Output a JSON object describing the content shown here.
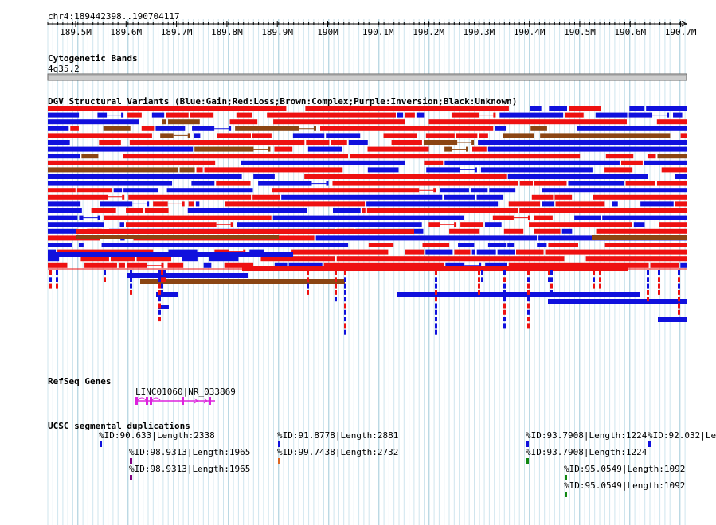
{
  "browser": {
    "coordinates": "chr4:189442398..190704117",
    "ruler_ticks": [
      "189.5M",
      "189.6M",
      "189.7M",
      "189.8M",
      "189.9M",
      "190M",
      "190.1M",
      "190.2M",
      "190.3M",
      "190.4M",
      "190.5M",
      "190.6M",
      "190.7M"
    ]
  },
  "tracks": {
    "cytoband": {
      "title": "Cytogenetic Bands",
      "band": "4q35.2"
    },
    "dgv": {
      "title": "DGV Structural Variants (Blue:Gain;Red:Loss;Brown:Complex;Purple:Inversion;Black:Unknown)",
      "colors": {
        "gain": "#1010dd",
        "loss": "#ee1111",
        "complex": "#8b4513",
        "inversion": "#800080",
        "unknown": "#000000"
      }
    },
    "refseq": {
      "title": "RefSeq Genes",
      "gene_label": "LINC01060|NR_033869",
      "gene_color": "#dd22dd"
    },
    "segdup": {
      "title": "UCSC segmental duplications",
      "features": [
        {
          "label": "%ID:90.633|Length:2338",
          "color": "#1010dd"
        },
        {
          "label": "%ID:98.9313|Length:1965",
          "color": "#800080"
        },
        {
          "label": "%ID:98.9313|Length:1965",
          "color": "#800080"
        },
        {
          "label": "%ID:91.8778|Length:2881",
          "color": "#1010dd"
        },
        {
          "label": "%ID:99.7438|Length:2732",
          "color": "#dd6622"
        },
        {
          "label": "%ID:93.7908|Length:1224",
          "color": "#1010dd"
        },
        {
          "label": "%ID:93.7908|Length:1224",
          "color": "#118811"
        },
        {
          "label": "%ID:92.032|Le",
          "color": "#1010dd"
        },
        {
          "label": "%ID:95.0549|Length:1092",
          "color": "#118811"
        },
        {
          "label": "%ID:95.0549|Length:1092",
          "color": "#118811"
        }
      ]
    }
  }
}
